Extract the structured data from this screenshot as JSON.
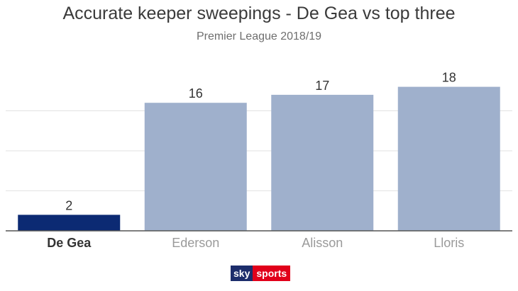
{
  "title": "Accurate keeper sweepings - De Gea vs top three",
  "subtitle": "Premier League 2018/19",
  "logo": {
    "part1": "sky",
    "part2": "sports"
  },
  "chart_data": {
    "type": "bar",
    "title": "Accurate keeper sweepings - De Gea vs top three",
    "subtitle": "Premier League 2018/19",
    "categories": [
      "De Gea",
      "Ederson",
      "Alisson",
      "Lloris"
    ],
    "values": [
      2,
      16,
      17,
      18
    ],
    "data_labels": [
      "2",
      "16",
      "17",
      "18"
    ],
    "highlight_index": 0,
    "ylim": [
      0,
      20
    ],
    "grid": true,
    "legend": "none",
    "xlabel": "",
    "ylabel": "",
    "colors": {
      "highlight": "#0c2a73",
      "default": "#9fb0cc",
      "grid": "#e2e2e2",
      "axis": "#555555"
    }
  }
}
